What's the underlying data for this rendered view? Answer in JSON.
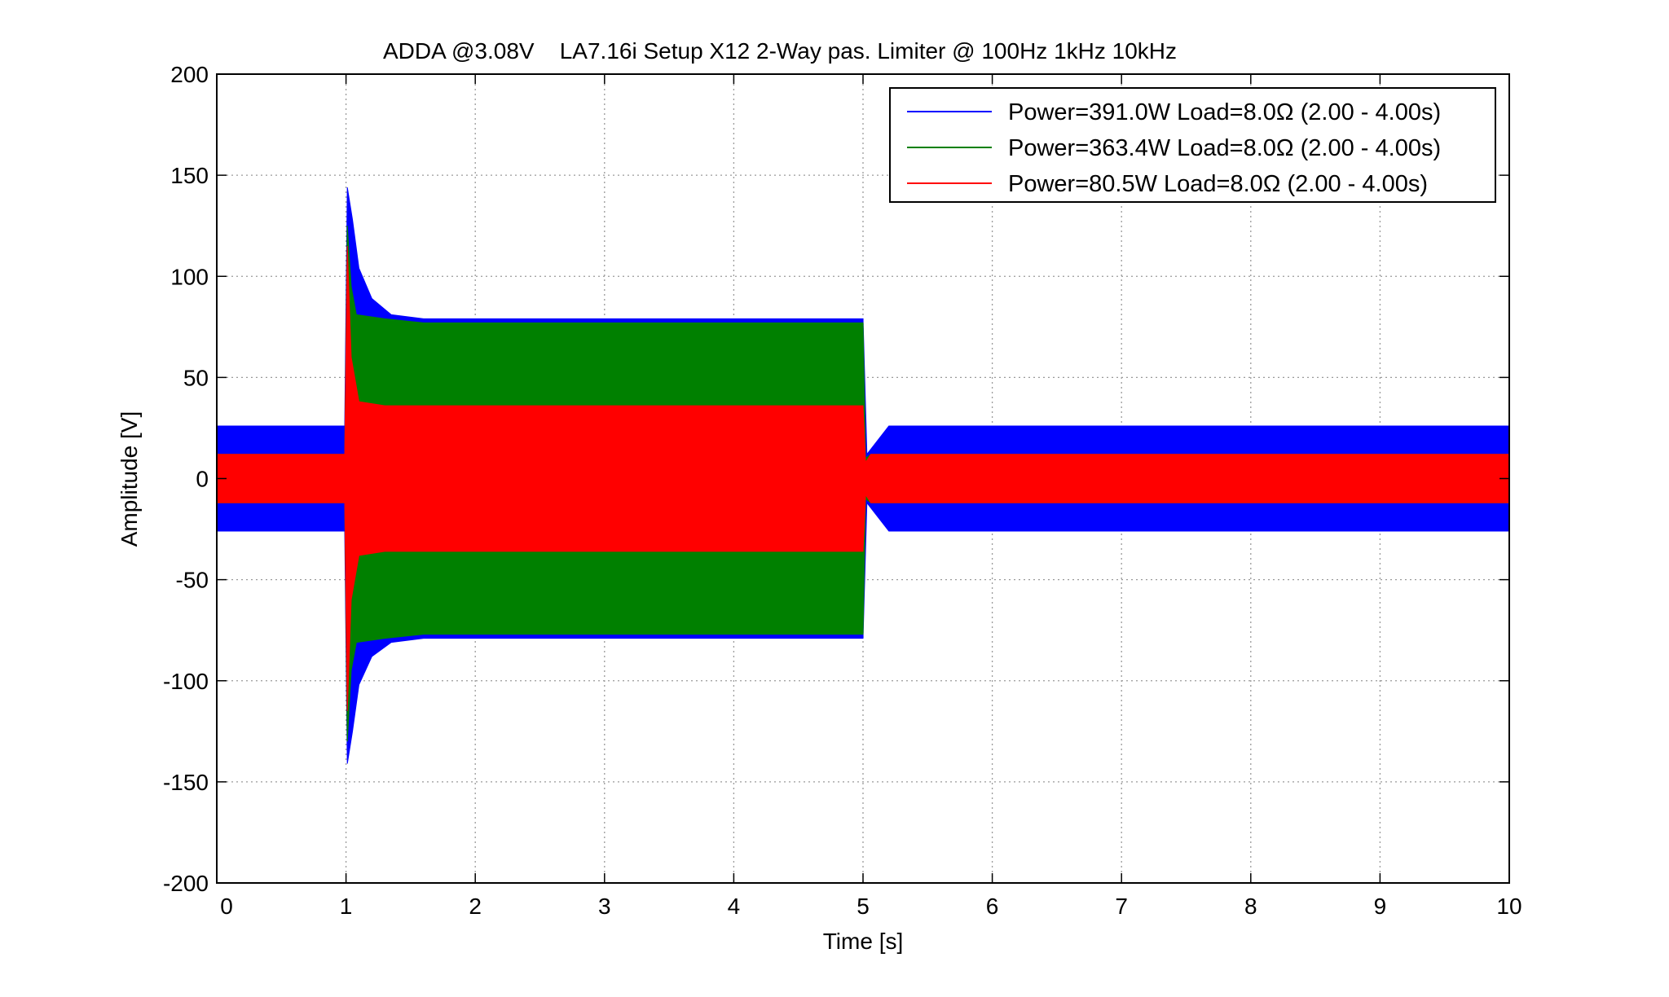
{
  "chart_data": {
    "type": "area",
    "title": "ADDA @3.08V    LA7.16i Setup X12 2-Way pas. Limiter @ 100Hz 1kHz 10kHz",
    "xlabel": "Time [s]",
    "ylabel": "Amplitude [V]",
    "xlim": [
      0,
      10
    ],
    "ylim": [
      -200,
      200
    ],
    "xticks": [
      "0",
      "1",
      "2",
      "3",
      "4",
      "5",
      "6",
      "7",
      "8",
      "9",
      "10"
    ],
    "yticks": [
      "200",
      "150",
      "100",
      "50",
      "0",
      "-50",
      "-100",
      "-150",
      "-200"
    ],
    "grid": true,
    "legend_position": "top-right",
    "series": [
      {
        "name": "Power=391.0W Load=8.0Ω (2.00 - 4.00s)",
        "color": "#0000ff",
        "envelope": [
          [
            0,
            26,
            -26
          ],
          [
            0.99,
            26,
            -26
          ],
          [
            1.01,
            144,
            -141
          ],
          [
            1.05,
            128,
            -125
          ],
          [
            1.1,
            104,
            -102
          ],
          [
            1.2,
            89,
            -88
          ],
          [
            1.35,
            81,
            -81
          ],
          [
            1.6,
            79,
            -79
          ],
          [
            5.0,
            79,
            -79
          ],
          [
            5.03,
            12,
            -12
          ],
          [
            5.2,
            26,
            -26
          ],
          [
            10,
            26,
            -26
          ]
        ]
      },
      {
        "name": "Power=363.4W Load=8.0Ω (2.00 - 4.00s)",
        "color": "#008000",
        "envelope": [
          [
            0,
            12,
            -12
          ],
          [
            0.99,
            12,
            -12
          ],
          [
            1.01,
            125,
            -130
          ],
          [
            1.04,
            95,
            -95
          ],
          [
            1.08,
            81,
            -81
          ],
          [
            1.3,
            79,
            -79
          ],
          [
            1.6,
            77,
            -77
          ],
          [
            5.0,
            77,
            -77
          ],
          [
            5.02,
            10,
            -10
          ],
          [
            5.06,
            12,
            -12
          ],
          [
            10,
            12,
            -12
          ]
        ]
      },
      {
        "name": "Power=80.5W Load=8.0Ω (2.00 - 4.00s)",
        "color": "#ff0000",
        "envelope": [
          [
            0,
            12,
            -12
          ],
          [
            0.99,
            12,
            -12
          ],
          [
            1.01,
            115,
            -115
          ],
          [
            1.04,
            60,
            -60
          ],
          [
            1.1,
            38,
            -38
          ],
          [
            1.3,
            36,
            -36
          ],
          [
            5.0,
            36,
            -36
          ],
          [
            5.02,
            8,
            -8
          ],
          [
            5.06,
            12,
            -12
          ],
          [
            10,
            12,
            -12
          ]
        ]
      }
    ]
  }
}
